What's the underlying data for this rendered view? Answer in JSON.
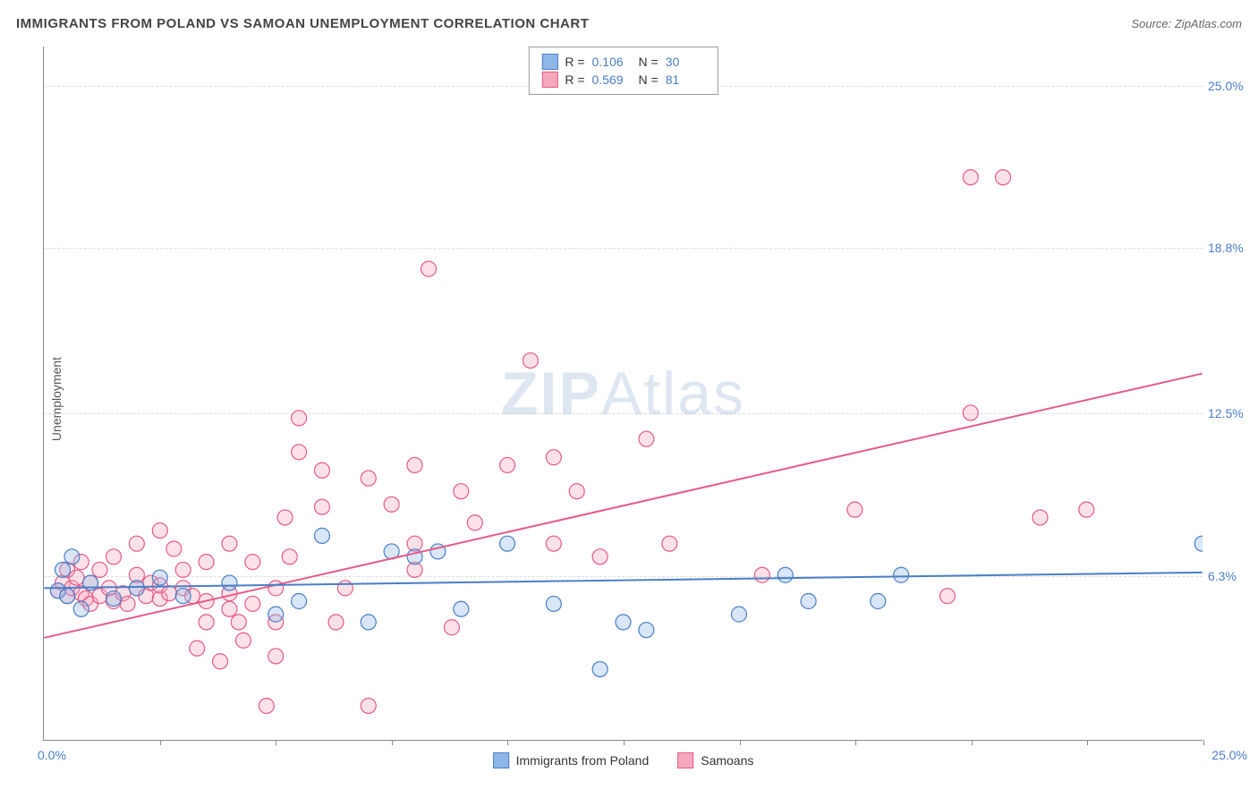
{
  "title": "IMMIGRANTS FROM POLAND VS SAMOAN UNEMPLOYMENT CORRELATION CHART",
  "source": "Source: ZipAtlas.com",
  "y_axis_label": "Unemployment",
  "watermark": {
    "zip": "ZIP",
    "atlas": "Atlas"
  },
  "chart": {
    "type": "scatter",
    "background_color": "#ffffff",
    "grid_color": "#dddddd",
    "axis_color": "#888888",
    "text_color": "#444444",
    "value_color": "#4a7ec7",
    "xlim": [
      0,
      25
    ],
    "ylim": [
      0,
      26.5
    ],
    "x_min_label": "0.0%",
    "x_max_label": "25.0%",
    "y_ticks": [
      {
        "value": 6.3,
        "label": "6.3%"
      },
      {
        "value": 12.5,
        "label": "12.5%"
      },
      {
        "value": 18.8,
        "label": "18.8%"
      },
      {
        "value": 25.0,
        "label": "25.0%"
      }
    ],
    "x_tick_positions": [
      2.5,
      5.0,
      7.5,
      10.0,
      12.5,
      15.0,
      17.5,
      20.0,
      22.5,
      25.0
    ],
    "marker_radius": 8.5,
    "marker_fill_opacity": 0.35,
    "marker_stroke_width": 1.2,
    "line_width": 2
  },
  "series": [
    {
      "id": "poland",
      "label": "Immigrants from Poland",
      "color_fill": "#8eb6e8",
      "color_stroke": "#4a7ec7",
      "R": "0.106",
      "N": "30",
      "trend": {
        "x1": 0,
        "y1": 5.8,
        "x2": 25,
        "y2": 6.4
      },
      "points": [
        [
          0.3,
          5.7
        ],
        [
          0.4,
          6.5
        ],
        [
          0.5,
          5.5
        ],
        [
          0.6,
          7.0
        ],
        [
          0.8,
          5.0
        ],
        [
          1.0,
          6.0
        ],
        [
          1.5,
          5.4
        ],
        [
          2.0,
          5.8
        ],
        [
          2.5,
          6.2
        ],
        [
          3.0,
          5.5
        ],
        [
          4.0,
          6.0
        ],
        [
          5.0,
          4.8
        ],
        [
          5.5,
          5.3
        ],
        [
          6.0,
          7.8
        ],
        [
          7.0,
          4.5
        ],
        [
          7.5,
          7.2
        ],
        [
          8.0,
          7.0
        ],
        [
          8.5,
          7.2
        ],
        [
          9.0,
          5.0
        ],
        [
          10.0,
          7.5
        ],
        [
          11.0,
          5.2
        ],
        [
          12.0,
          2.7
        ],
        [
          12.5,
          4.5
        ],
        [
          13.0,
          4.2
        ],
        [
          15.0,
          4.8
        ],
        [
          16.0,
          6.3
        ],
        [
          16.5,
          5.3
        ],
        [
          18.0,
          5.3
        ],
        [
          18.5,
          6.3
        ],
        [
          25.0,
          7.5
        ]
      ]
    },
    {
      "id": "samoans",
      "label": "Samoans",
      "color_fill": "#f5a8bd",
      "color_stroke": "#e65a87",
      "R": "0.569",
      "N": "81",
      "trend": {
        "x1": 0,
        "y1": 3.9,
        "x2": 25,
        "y2": 14.0
      },
      "points": [
        [
          0.3,
          5.7
        ],
        [
          0.4,
          6.0
        ],
        [
          0.5,
          5.5
        ],
        [
          0.5,
          6.5
        ],
        [
          0.6,
          5.8
        ],
        [
          0.7,
          6.2
        ],
        [
          0.8,
          5.6
        ],
        [
          0.8,
          6.8
        ],
        [
          0.9,
          5.4
        ],
        [
          1.0,
          6.0
        ],
        [
          1.0,
          5.2
        ],
        [
          1.2,
          5.5
        ],
        [
          1.2,
          6.5
        ],
        [
          1.4,
          5.8
        ],
        [
          1.5,
          5.3
        ],
        [
          1.5,
          7.0
        ],
        [
          1.7,
          5.6
        ],
        [
          1.8,
          5.2
        ],
        [
          2.0,
          5.8
        ],
        [
          2.0,
          6.3
        ],
        [
          2.0,
          7.5
        ],
        [
          2.2,
          5.5
        ],
        [
          2.3,
          6.0
        ],
        [
          2.5,
          5.4
        ],
        [
          2.5,
          5.9
        ],
        [
          2.5,
          8.0
        ],
        [
          2.7,
          5.6
        ],
        [
          2.8,
          7.3
        ],
        [
          3.0,
          5.8
        ],
        [
          3.0,
          6.5
        ],
        [
          3.2,
          5.5
        ],
        [
          3.3,
          3.5
        ],
        [
          3.5,
          4.5
        ],
        [
          3.5,
          5.3
        ],
        [
          3.5,
          6.8
        ],
        [
          3.8,
          3.0
        ],
        [
          4.0,
          5.0
        ],
        [
          4.0,
          5.6
        ],
        [
          4.0,
          7.5
        ],
        [
          4.2,
          4.5
        ],
        [
          4.3,
          3.8
        ],
        [
          4.5,
          5.2
        ],
        [
          4.5,
          6.8
        ],
        [
          4.8,
          1.3
        ],
        [
          5.0,
          4.5
        ],
        [
          5.0,
          3.2
        ],
        [
          5.0,
          5.8
        ],
        [
          5.2,
          8.5
        ],
        [
          5.3,
          7.0
        ],
        [
          5.5,
          11.0
        ],
        [
          5.5,
          12.3
        ],
        [
          6.0,
          8.9
        ],
        [
          6.0,
          10.3
        ],
        [
          6.3,
          4.5
        ],
        [
          6.5,
          5.8
        ],
        [
          7.0,
          10.0
        ],
        [
          7.0,
          1.3
        ],
        [
          7.5,
          9.0
        ],
        [
          8.0,
          6.5
        ],
        [
          8.0,
          7.5
        ],
        [
          8.0,
          10.5
        ],
        [
          8.3,
          18.0
        ],
        [
          8.8,
          4.3
        ],
        [
          9.0,
          9.5
        ],
        [
          9.3,
          8.3
        ],
        [
          10.0,
          10.5
        ],
        [
          10.5,
          14.5
        ],
        [
          11.0,
          7.5
        ],
        [
          11.0,
          10.8
        ],
        [
          11.5,
          9.5
        ],
        [
          12.0,
          7.0
        ],
        [
          13.0,
          11.5
        ],
        [
          13.5,
          7.5
        ],
        [
          15.5,
          6.3
        ],
        [
          17.5,
          8.8
        ],
        [
          19.5,
          5.5
        ],
        [
          20.0,
          21.5
        ],
        [
          20.0,
          12.5
        ],
        [
          20.7,
          21.5
        ],
        [
          21.5,
          8.5
        ],
        [
          22.5,
          8.8
        ]
      ]
    }
  ],
  "legend_stats": {
    "r_label": "R  =",
    "n_label": "N  ="
  }
}
